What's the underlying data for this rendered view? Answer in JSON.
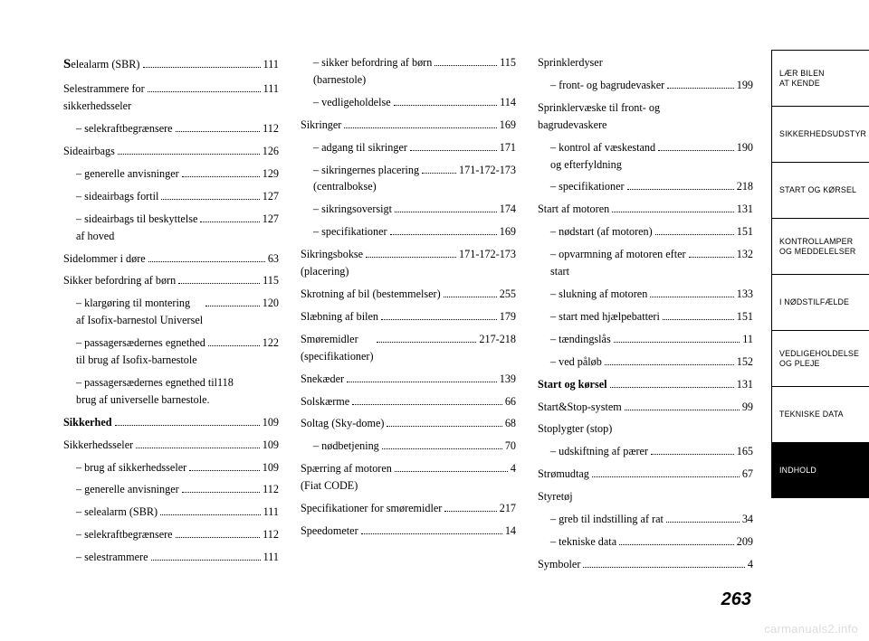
{
  "pageNumber": "263",
  "watermark": "carmanuals2.info",
  "columns": [
    [
      {
        "label": "Selealarm (SBR)",
        "page": "111",
        "bold": false,
        "bigS": true
      },
      {
        "label": "Selestrammere for\nsikkerhedsseler",
        "page": "111"
      },
      {
        "label": "– selekraftbegrænsere",
        "page": "112",
        "sub": true
      },
      {
        "label": "Sideairbags",
        "page": "126"
      },
      {
        "label": "– generelle anvisninger",
        "page": "129",
        "sub": true
      },
      {
        "label": "– sideairbags fortil",
        "page": "127",
        "sub": true
      },
      {
        "label": "– sideairbags til beskyttelse\naf hoved",
        "page": "127",
        "sub": true
      },
      {
        "label": "Sidelommer i døre",
        "page": "63"
      },
      {
        "label": "Sikker befordring af børn",
        "page": "115"
      },
      {
        "label": "– klargøring til montering\naf Isofix-barnestol Universel",
        "page": "120",
        "sub": true
      },
      {
        "label": "– passagersædernes egnethed\ntil brug af Isofix-barnestole",
        "page": "122",
        "sub": true
      },
      {
        "label": "– passagersædernes egnethed til\nbrug af universelle barnestole.",
        "page": "118",
        "sub": true,
        "nodots": true
      },
      {
        "label": "Sikkerhed",
        "page": "109",
        "bold": true
      },
      {
        "label": "Sikkerhedsseler",
        "page": "109"
      },
      {
        "label": "– brug af sikkerhedsseler",
        "page": "109",
        "sub": true
      },
      {
        "label": "– generelle anvisninger",
        "page": "112",
        "sub": true
      },
      {
        "label": "– selealarm (SBR)",
        "page": "111",
        "sub": true
      },
      {
        "label": "– selekraftbegrænsere",
        "page": "112",
        "sub": true
      },
      {
        "label": "– selestrammere",
        "page": "111",
        "sub": true
      }
    ],
    [
      {
        "label": "– sikker befordring af børn\n(barnestole)",
        "page": "115",
        "sub": true
      },
      {
        "label": "– vedligeholdelse",
        "page": "114",
        "sub": true
      },
      {
        "label": "Sikringer",
        "page": "169"
      },
      {
        "label": "– adgang til sikringer",
        "page": "171",
        "sub": true
      },
      {
        "label": "– sikringernes placering\n(centralbokse)",
        "page": "171-172-173",
        "sub": true
      },
      {
        "label": "– sikringsoversigt",
        "page": "174",
        "sub": true
      },
      {
        "label": "– specifikationer",
        "page": "169",
        "sub": true
      },
      {
        "label": "Sikringsbokse\n(placering)",
        "page": "171-172-173"
      },
      {
        "label": "Skrotning af bil (bestemmelser)",
        "page": "255",
        "tight": true
      },
      {
        "label": "Slæbning af bilen",
        "page": "179"
      },
      {
        "label": "Smøremidler\n(specifikationer)",
        "page": "217-218"
      },
      {
        "label": "Snekæder",
        "page": "139"
      },
      {
        "label": "Solskærme",
        "page": "66"
      },
      {
        "label": "Soltag (Sky-dome)",
        "page": "68"
      },
      {
        "label": "– nødbetjening",
        "page": "70",
        "sub": true
      },
      {
        "label": "Spærring af motoren\n(Fiat CODE)",
        "page": "4"
      },
      {
        "label": "Specifikationer for smøremidler",
        "page": "217",
        "tight": true
      },
      {
        "label": "Speedometer",
        "page": "14"
      }
    ],
    [
      {
        "label": "Sprinklerdyser"
      },
      {
        "label": "– front- og bagrudevasker",
        "page": "199",
        "sub": true
      },
      {
        "label": "Sprinklervæske til front- og\nbagrudevaskere"
      },
      {
        "label": "– kontrol af væskestand\nog efterfyldning",
        "page": "190",
        "sub": true
      },
      {
        "label": "– specifikationer",
        "page": "218",
        "sub": true
      },
      {
        "label": "Start af motoren",
        "page": "131"
      },
      {
        "label": "– nødstart (af motoren)",
        "page": "151",
        "sub": true
      },
      {
        "label": "– opvarmning af motoren efter\nstart",
        "page": "132",
        "sub": true
      },
      {
        "label": "– slukning af motoren",
        "page": "133",
        "sub": true
      },
      {
        "label": "– start med hjælpebatteri",
        "page": "151",
        "sub": true
      },
      {
        "label": "– tændingslås",
        "page": "11",
        "sub": true
      },
      {
        "label": "– ved påløb",
        "page": "152",
        "sub": true
      },
      {
        "label": "Start og kørsel",
        "page": "131",
        "bold": true
      },
      {
        "label": "Start&Stop-system",
        "page": "99"
      },
      {
        "label": "Stoplygter (stop)"
      },
      {
        "label": "– udskiftning af pærer",
        "page": "165",
        "sub": true
      },
      {
        "label": "Strømudtag",
        "page": "67"
      },
      {
        "label": "Styretøj"
      },
      {
        "label": "– greb til indstilling af rat",
        "page": "34",
        "sub": true
      },
      {
        "label": "– tekniske data",
        "page": "209",
        "sub": true
      },
      {
        "label": "Symboler",
        "page": "4"
      }
    ]
  ],
  "tabs": [
    {
      "label": "LÆR BILEN\nAT KENDE"
    },
    {
      "label": "SIKKERHEDSUDSTYR"
    },
    {
      "label": "START OG KØRSEL"
    },
    {
      "label": "KONTROLLAMPER\nOG MEDDELELSER"
    },
    {
      "label": "I NØDSTILFÆLDE"
    },
    {
      "label": "VEDLIGEHOLDELSE\nOG PLEJE"
    },
    {
      "label": "TEKNISKE DATA"
    },
    {
      "label": "INDHOLD",
      "active": true
    }
  ]
}
